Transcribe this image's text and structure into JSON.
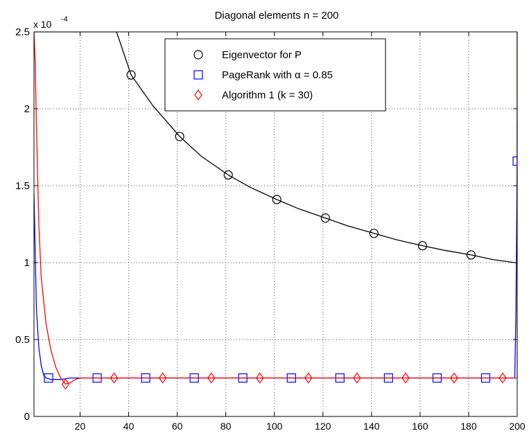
{
  "chart_data": {
    "type": "line",
    "title": "Diagonal elements n = 200",
    "scale_label_prefix": "x 10",
    "scale_label_exponent": "-4",
    "xlabel": "",
    "ylabel": "",
    "xlim": [
      1,
      200
    ],
    "ylim": [
      0,
      2.5
    ],
    "grid": true,
    "legend_position": "top-center",
    "xtick_values": [
      20,
      40,
      60,
      80,
      100,
      120,
      140,
      160,
      180,
      200
    ],
    "xtick_labels": [
      "20",
      "40",
      "60",
      "80",
      "100",
      "120",
      "140",
      "160",
      "180",
      "200"
    ],
    "ytick_values": [
      0,
      0.5,
      1,
      1.5,
      2,
      2.5
    ],
    "ytick_labels": [
      "0",
      "0.5",
      "1",
      "1.5",
      "2",
      "2.5"
    ],
    "series": [
      {
        "name": "Eigenvector for P",
        "color": "#000000",
        "marker": "circle",
        "line": {
          "x": [
            1,
            2,
            3,
            5,
            10,
            20,
            25,
            30,
            35,
            41,
            50,
            61,
            70,
            81,
            90,
            101,
            110,
            121,
            130,
            141,
            150,
            161,
            170,
            181,
            190,
            199,
            200,
            200,
            200
          ],
          "y": [
            2.5,
            2.5,
            2.5,
            2.5,
            2.5,
            2.5,
            2.5,
            2.5,
            2.5,
            2.22,
            2.02,
            1.82,
            1.69,
            1.57,
            1.49,
            1.41,
            1.35,
            1.29,
            1.24,
            1.19,
            1.15,
            1.11,
            1.08,
            1.05,
            1.02,
            1.0,
            1.0,
            1.9,
            2.5
          ]
        },
        "markers": {
          "x": [
            41,
            61,
            81,
            101,
            121,
            141,
            161,
            181
          ],
          "y": [
            2.22,
            1.82,
            1.57,
            1.41,
            1.29,
            1.19,
            1.11,
            1.05
          ]
        }
      },
      {
        "name": "PageRank with α = 0.85",
        "color": "#0000ff",
        "marker": "square",
        "line": {
          "x": [
            1,
            2,
            3,
            4,
            5,
            6,
            7,
            8,
            10,
            12,
            14,
            16,
            18,
            20,
            50,
            100,
            150,
            199,
            199.5,
            200,
            200
          ],
          "y": [
            1.45,
            0.7,
            0.45,
            0.33,
            0.27,
            0.25,
            0.245,
            0.24,
            0.24,
            0.24,
            0.245,
            0.25,
            0.25,
            0.25,
            0.25,
            0.25,
            0.25,
            0.25,
            0.7,
            1.66,
            1.9
          ]
        },
        "markers": {
          "x": [
            7,
            27,
            47,
            67,
            87,
            107,
            127,
            147,
            167,
            187,
            200
          ],
          "y": [
            0.25,
            0.25,
            0.25,
            0.25,
            0.25,
            0.25,
            0.25,
            0.25,
            0.25,
            0.25,
            1.66
          ]
        }
      },
      {
        "name": "Algorithm 1 (k = 30)",
        "color": "#ff0000",
        "marker": "diamond",
        "line": {
          "x": [
            1,
            1.5,
            2,
            3,
            4,
            6,
            8,
            10,
            12,
            14,
            16,
            18,
            20,
            24,
            30,
            60,
            100,
            150,
            199,
            200,
            200
          ],
          "y": [
            2.5,
            2.3,
            1.9,
            1.25,
            0.9,
            0.6,
            0.43,
            0.32,
            0.25,
            0.21,
            0.22,
            0.24,
            0.25,
            0.25,
            0.25,
            0.25,
            0.25,
            0.25,
            0.25,
            0.25,
            2.5
          ]
        },
        "markers": {
          "x": [
            14,
            34,
            54,
            74,
            94,
            114,
            134,
            154,
            174,
            194
          ],
          "y": [
            0.21,
            0.25,
            0.25,
            0.25,
            0.25,
            0.25,
            0.25,
            0.25,
            0.25,
            0.25
          ]
        }
      }
    ]
  }
}
